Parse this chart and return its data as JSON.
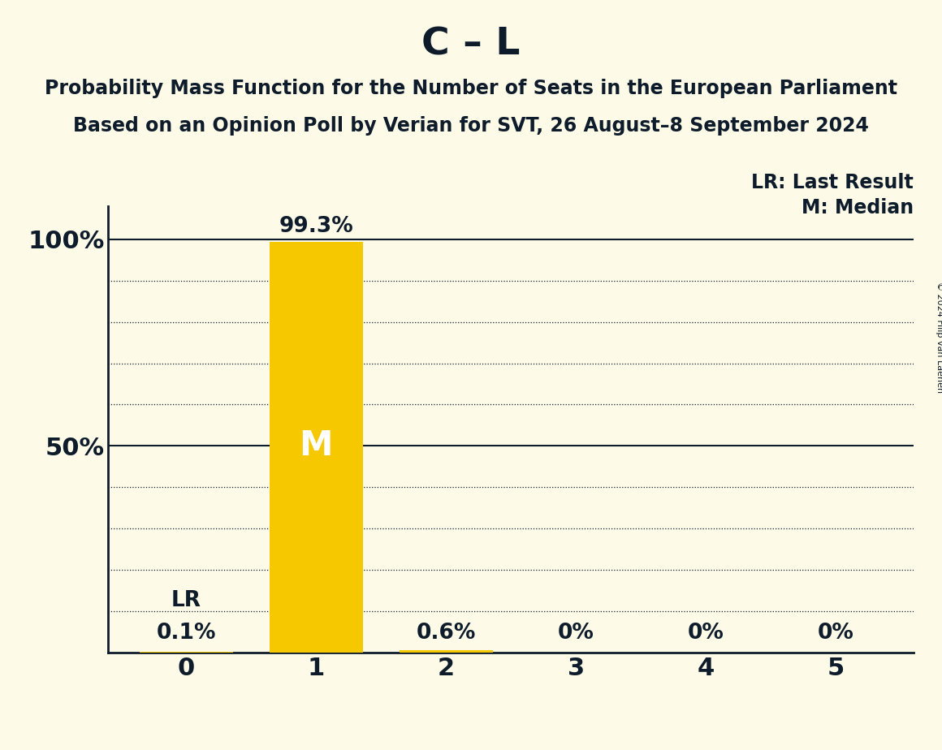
{
  "title": "C – L",
  "subtitle1": "Probability Mass Function for the Number of Seats in the European Parliament",
  "subtitle2": "Based on an Opinion Poll by Verian for SVT, 26 August–8 September 2024",
  "copyright": "© 2024 Filip van Laenen",
  "categories": [
    0,
    1,
    2,
    3,
    4,
    5
  ],
  "values": [
    0.001,
    0.993,
    0.006,
    0.0,
    0.0,
    0.0
  ],
  "bar_labels": [
    "0.1%",
    "99.3%",
    "0.6%",
    "0%",
    "0%",
    "0%"
  ],
  "bar_color": "#F5C800",
  "background_color": "#FDFBE8",
  "text_color": "#0D1B2A",
  "median": 1,
  "last_result": 0,
  "lr_label": "LR",
  "lr_legend": "LR: Last Result",
  "m_legend": "M: Median",
  "yticks": [
    0.0,
    0.1,
    0.2,
    0.3,
    0.4,
    0.5,
    0.6,
    0.7,
    0.8,
    0.9,
    1.0
  ],
  "ylim": [
    0,
    1.08
  ],
  "title_fontsize": 34,
  "subtitle_fontsize": 17,
  "tick_fontsize": 22,
  "bar_label_fontsize": 19,
  "legend_fontsize": 17,
  "m_fontsize": 30
}
